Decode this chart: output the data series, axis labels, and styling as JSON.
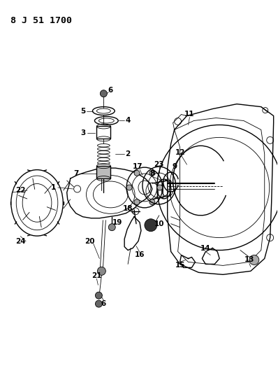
{
  "title": "8 J 51 1700",
  "background_color": "#ffffff",
  "line_color": "#000000",
  "figsize": [
    3.98,
    5.33
  ],
  "dpi": 100
}
